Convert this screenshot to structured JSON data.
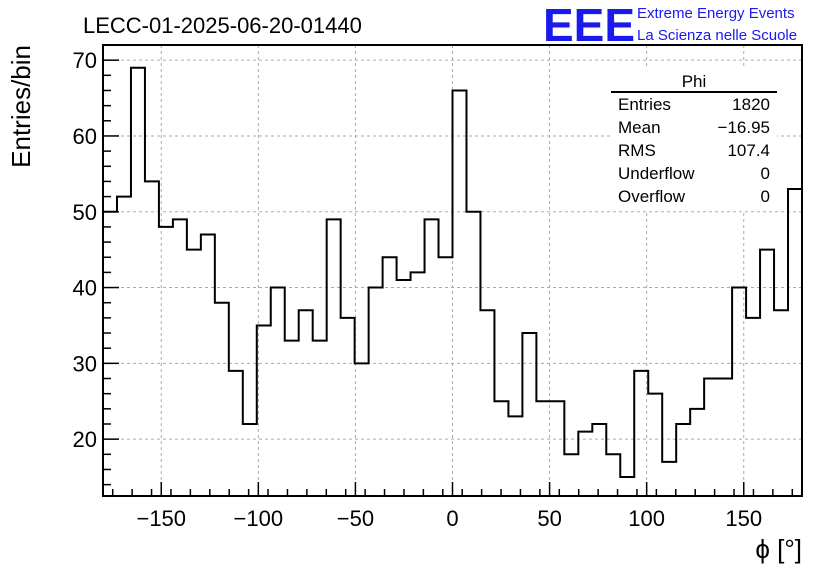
{
  "chart_data": {
    "type": "bar",
    "style": "step-histogram",
    "title": "LECC-01-2025-06-20-01440",
    "xlabel": "ϕ [°]",
    "ylabel": "Entries/bin",
    "xlim": [
      -180,
      180
    ],
    "ylim": [
      12.5,
      72
    ],
    "bin_width": 7.2,
    "x_ticks": [
      -150,
      -100,
      -50,
      0,
      50,
      100,
      150
    ],
    "x_tick_labels": [
      "−150",
      "−100",
      "−50",
      "0",
      "50",
      "100",
      "150"
    ],
    "y_ticks": [
      20,
      30,
      40,
      50,
      60,
      70
    ],
    "y_tick_labels": [
      "20",
      "30",
      "40",
      "50",
      "60",
      "70"
    ],
    "grid": true,
    "series": [
      {
        "name": "Phi",
        "values": [
          50,
          52,
          69,
          54,
          48,
          49,
          45,
          47,
          38,
          29,
          22,
          35,
          40,
          33,
          37,
          33,
          49,
          36,
          30,
          40,
          44,
          41,
          42,
          49,
          44,
          66,
          50,
          37,
          25,
          23,
          34,
          25,
          25,
          18,
          21,
          22,
          18,
          15,
          29,
          26,
          17,
          22,
          24,
          28,
          28,
          40,
          36,
          45,
          37,
          53
        ]
      }
    ],
    "stats_box": {
      "title": "Phi",
      "position": "top-right",
      "rows": [
        {
          "label": "Entries",
          "value": "1820"
        },
        {
          "label": "Mean",
          "value": "−16.95"
        },
        {
          "label": "RMS",
          "value": "107.4"
        },
        {
          "label": "Underflow",
          "value": "0"
        },
        {
          "label": "Overflow",
          "value": "0"
        }
      ]
    }
  },
  "logo": {
    "mark": "EEE",
    "line1": "Extreme Energy Events",
    "line2": "La Scienza nelle Scuole",
    "color": "#1a1aee"
  }
}
